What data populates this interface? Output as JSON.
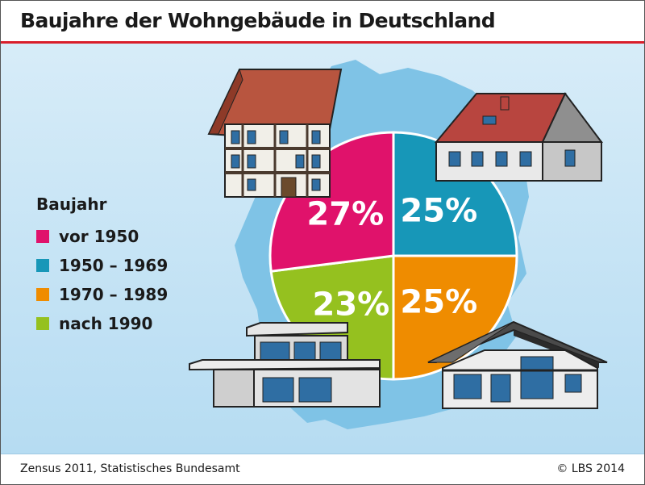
{
  "title": "Baujahre der Wohngebäude in Deutschland",
  "legend_title": "Baujahr",
  "source": "Zensus 2011, Statistisches Bundesamt",
  "copyright": "© LBS 2014",
  "chart_data": {
    "type": "pie",
    "title": "Baujahre der Wohngebäude in Deutschland",
    "legend_title": "Baujahr",
    "legend_position": "left",
    "categories": [
      "vor 1950",
      "1950 – 1969",
      "1970 – 1989",
      "nach 1990"
    ],
    "values": [
      27,
      25,
      25,
      23
    ],
    "labels": [
      "27%",
      "25%",
      "25%",
      "23%"
    ],
    "unit": "%",
    "colors": [
      "#e0126b",
      "#1797b8",
      "#ef8c00",
      "#95c11f"
    ]
  }
}
